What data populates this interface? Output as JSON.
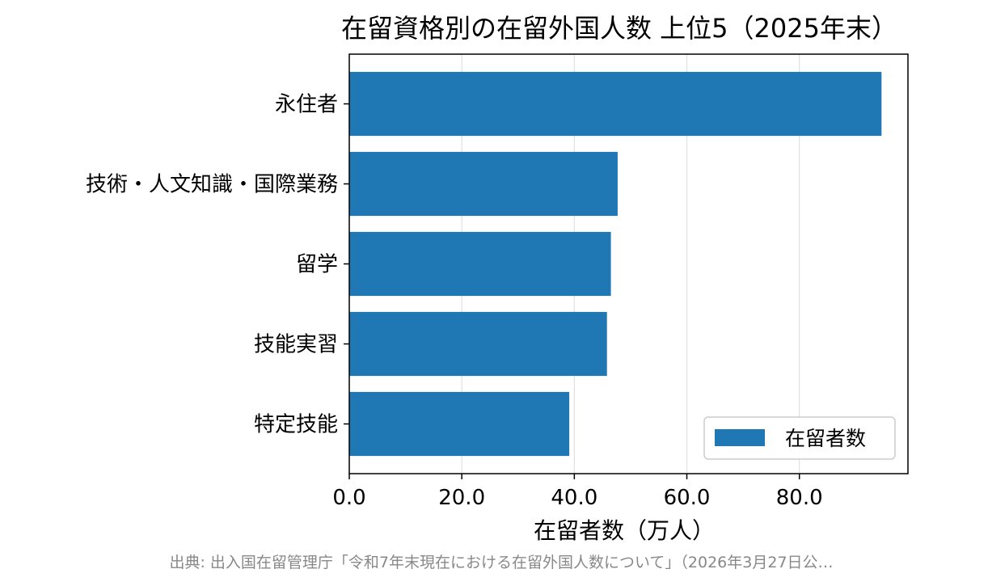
{
  "chart_data": {
    "type": "bar",
    "orientation": "horizontal",
    "title": "在留資格別の在留外国人数 上位5（2025年末）",
    "xlabel": "在留者数（万人）",
    "ylabel": "",
    "categories": [
      "永住者",
      "技術・人文知識・国際業務",
      "留学",
      "技能実習",
      "特定技能"
    ],
    "series": [
      {
        "name": "在留者数",
        "values": [
          94.6,
          47.7,
          46.5,
          45.8,
          39.1
        ]
      }
    ],
    "xlim": [
      0,
      99.3
    ],
    "xticks": [
      0,
      20,
      40,
      60,
      80
    ],
    "xtick_labels": [
      "0.0",
      "20.0",
      "40.0",
      "60.0",
      "80.0"
    ],
    "grid": "x",
    "legend_position": "bottom-right",
    "bar_color": "#1f77b4",
    "grid_color": "#e0e0e0"
  },
  "source_note": "出典: 出入国在留管理庁「令和7年末現在における在留外国人数について」（2026年3月27日公…"
}
